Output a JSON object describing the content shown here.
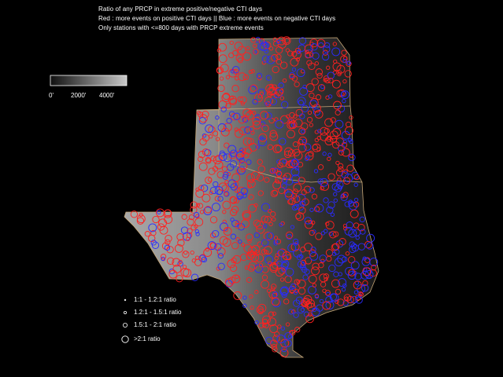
{
  "title_lines": [
    "Ratio of any PRCP in extreme positive/negative CTI days",
    "Red : more events on positive CTI days || Blue : more events on negative CTI days",
    "Only stations with <=800 days with PRCP extreme events"
  ],
  "elevation_scale": {
    "labels": [
      "0'",
      "2000'",
      "4000'"
    ],
    "colors": [
      "#101010",
      "#c8c8c8"
    ]
  },
  "ratio_legend": [
    "1:1 - 1.2:1 ratio",
    "1.2:1 - 1.5:1 ratio",
    "1.5:1 - 2:1 ratio",
    ">2:1 ratio"
  ],
  "colors": {
    "positive": "#ff2020",
    "negative": "#2a2aff",
    "border": "#c8a878",
    "background": "#000000"
  }
}
